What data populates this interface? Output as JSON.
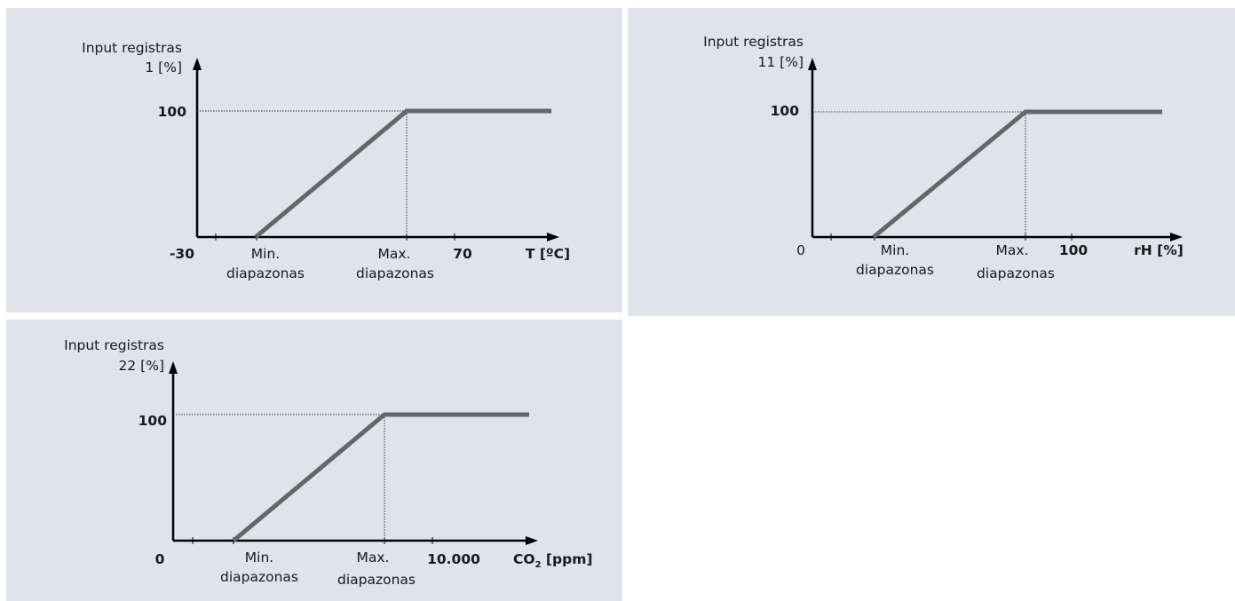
{
  "diagrams": [
    {
      "ylabel_line1": "Input registras",
      "ylabel_line2": "1 [%]",
      "y_max_label": "100",
      "x_origin_label": "-30",
      "min_label_line1": "Min.",
      "min_label_line2": "diapazonas",
      "max_label_line1": "Max.",
      "max_label_line2": "diapazonas",
      "x_max_label": "70",
      "x_unit_label": "T [ºC]"
    },
    {
      "ylabel_line1": "Input registras",
      "ylabel_line2": "11 [%]",
      "y_max_label": "100",
      "x_origin_label": "0",
      "min_label_line1": "Min.",
      "min_label_line2": "diapazonas",
      "max_label_line1": "Max.",
      "max_label_line2": "diapazonas",
      "x_max_label": "100",
      "x_unit_label": "rH [%]"
    },
    {
      "ylabel_line1": "Input registras",
      "ylabel_line2": "22 [%]",
      "y_max_label": "100",
      "x_origin_label": "0",
      "min_label_line1": "Min.",
      "min_label_line2": "diapazonas",
      "max_label_line1": "Max.",
      "max_label_line2": "diapazonas",
      "x_max_label": "10.000",
      "x_unit_main": "CO",
      "x_unit_sub": "2",
      "x_unit_rest": " [ppm]"
    }
  ],
  "colors": {
    "panel_background": "#dfe3ec",
    "curve": "#666666",
    "axis": "#000000"
  }
}
